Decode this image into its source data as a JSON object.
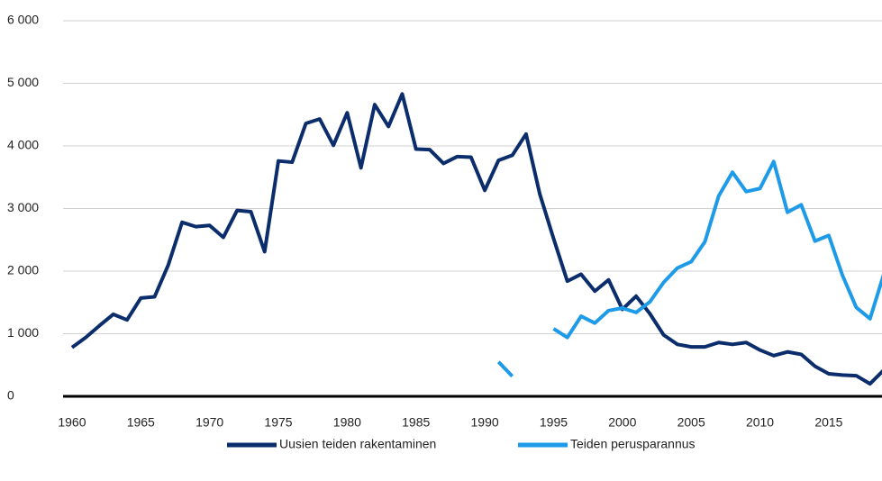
{
  "chart_data": {
    "type": "line",
    "x": [
      1960,
      1961,
      1962,
      1963,
      1964,
      1965,
      1966,
      1967,
      1968,
      1969,
      1970,
      1971,
      1972,
      1973,
      1974,
      1975,
      1976,
      1977,
      1978,
      1979,
      1980,
      1981,
      1982,
      1983,
      1984,
      1985,
      1986,
      1987,
      1988,
      1989,
      1990,
      1991,
      1992,
      1993,
      1994,
      1995,
      1996,
      1997,
      1998,
      1999,
      2000,
      2001,
      2002,
      2003,
      2004,
      2005,
      2006,
      2007,
      2008,
      2009,
      2010,
      2011,
      2012,
      2013,
      2014,
      2015,
      2016,
      2017,
      2018,
      2019
    ],
    "series": [
      {
        "name": "Uusien teiden rakentaminen",
        "color": "#0b2d6b",
        "values": [
          780,
          940,
          1130,
          1310,
          1220,
          1570,
          1590,
          2100,
          2780,
          2710,
          2730,
          2540,
          2970,
          2950,
          2310,
          3760,
          3740,
          4360,
          4430,
          4010,
          4530,
          3650,
          4660,
          4310,
          4830,
          3950,
          3940,
          3720,
          3830,
          3820,
          3290,
          3770,
          3850,
          4190,
          3230,
          2520,
          1840,
          1950,
          1680,
          1860,
          1390,
          1600,
          1320,
          980,
          830,
          790,
          790,
          860,
          830,
          860,
          740,
          650,
          710,
          670,
          480,
          360,
          340,
          330,
          200,
          420
        ]
      },
      {
        "name": "Teiden perusparannus",
        "color": "#1e9be8",
        "values": [
          null,
          null,
          null,
          null,
          null,
          null,
          null,
          null,
          null,
          null,
          null,
          null,
          null,
          null,
          null,
          null,
          null,
          null,
          null,
          null,
          null,
          null,
          null,
          null,
          null,
          null,
          null,
          null,
          null,
          null,
          null,
          550,
          320,
          null,
          null,
          1080,
          940,
          1280,
          1170,
          1370,
          1410,
          1340,
          1510,
          1820,
          2050,
          2150,
          2470,
          3200,
          3580,
          3270,
          3320,
          3750,
          2940,
          3060,
          2480,
          2570,
          1930,
          1420,
          1240,
          1950
        ]
      }
    ],
    "xlim": [
      1959.35,
      2018.87
    ],
    "ylim": [
      0,
      6000
    ],
    "xticks": [
      1960,
      1965,
      1970,
      1975,
      1980,
      1985,
      1990,
      1995,
      2000,
      2005,
      2010,
      2015
    ],
    "yticks": [
      0,
      {
        "value": 1000,
        "label": "1 000"
      },
      {
        "value": 2000,
        "label": "2 000"
      },
      {
        "value": 3000,
        "label": "3 000"
      },
      {
        "value": 4000,
        "label": "4 000"
      },
      {
        "value": 5000,
        "label": "5 000"
      },
      {
        "value": 6000,
        "label": "6 000"
      }
    ],
    "grid": true,
    "legend": "bottom"
  }
}
